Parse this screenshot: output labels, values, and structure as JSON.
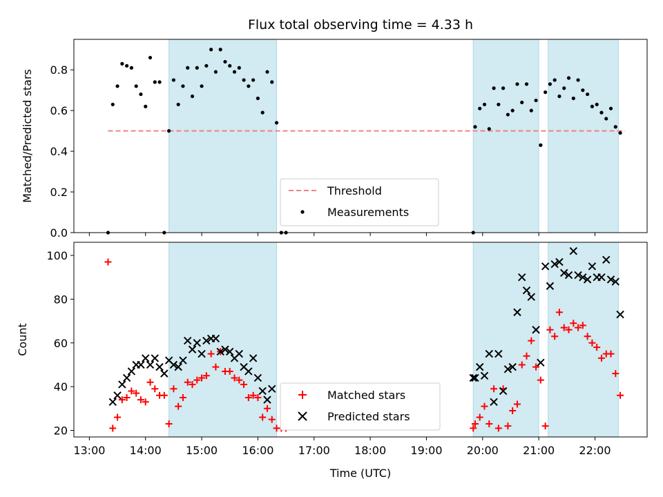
{
  "chart_data": {
    "title": "Flux total observing time = 4.33 h",
    "xlabel": "Time (UTC)",
    "x_ticks": [
      "13:00",
      "14:00",
      "15:00",
      "16:00",
      "17:00",
      "18:00",
      "19:00",
      "20:00",
      "21:00",
      "22:00"
    ],
    "shaded_intervals": [
      [
        "14:25",
        "16:20"
      ],
      [
        "19:50",
        "21:00"
      ],
      [
        "21:10",
        "22:25"
      ]
    ],
    "panels": [
      {
        "type": "scatter",
        "ylabel": "Matched/Predicted stars",
        "ylim": [
          0,
          0.95
        ],
        "y_ticks": [
          "0.0",
          "0.2",
          "0.4",
          "0.6",
          "0.8"
        ],
        "threshold": {
          "name": "Threshold",
          "value": 0.5,
          "x_range": [
            "13:20",
            "22:32"
          ],
          "color": "#f08080"
        },
        "series": [
          {
            "name": "Measurements",
            "color": "#000000",
            "points": [
              [
                "13:20",
                0.0
              ],
              [
                "13:25",
                0.63
              ],
              [
                "13:30",
                0.72
              ],
              [
                "13:35",
                0.83
              ],
              [
                "13:40",
                0.82
              ],
              [
                "13:45",
                0.81
              ],
              [
                "13:50",
                0.72
              ],
              [
                "13:55",
                0.68
              ],
              [
                "14:00",
                0.62
              ],
              [
                "14:05",
                0.86
              ],
              [
                "14:10",
                0.74
              ],
              [
                "14:15",
                0.74
              ],
              [
                "14:20",
                0.0
              ],
              [
                "14:25",
                0.5
              ],
              [
                "14:30",
                0.75
              ],
              [
                "14:35",
                0.63
              ],
              [
                "14:40",
                0.72
              ],
              [
                "14:45",
                0.81
              ],
              [
                "14:50",
                0.67
              ],
              [
                "14:55",
                0.81
              ],
              [
                "15:00",
                0.72
              ],
              [
                "15:05",
                0.82
              ],
              [
                "15:10",
                0.9
              ],
              [
                "15:15",
                0.79
              ],
              [
                "15:20",
                0.9
              ],
              [
                "15:25",
                0.84
              ],
              [
                "15:30",
                0.82
              ],
              [
                "15:35",
                0.79
              ],
              [
                "15:40",
                0.81
              ],
              [
                "15:45",
                0.75
              ],
              [
                "15:50",
                0.72
              ],
              [
                "15:55",
                0.75
              ],
              [
                "16:00",
                0.66
              ],
              [
                "16:05",
                0.59
              ],
              [
                "16:10",
                0.79
              ],
              [
                "16:15",
                0.74
              ],
              [
                "16:20",
                0.54
              ],
              [
                "16:25",
                0.0
              ],
              [
                "16:30",
                0.0
              ],
              [
                "19:50",
                0.0
              ],
              [
                "19:52",
                0.52
              ],
              [
                "19:57",
                0.61
              ],
              [
                "20:02",
                0.63
              ],
              [
                "20:07",
                0.51
              ],
              [
                "20:12",
                0.71
              ],
              [
                "20:17",
                0.63
              ],
              [
                "20:22",
                0.71
              ],
              [
                "20:27",
                0.58
              ],
              [
                "20:32",
                0.6
              ],
              [
                "20:37",
                0.73
              ],
              [
                "20:42",
                0.64
              ],
              [
                "20:47",
                0.73
              ],
              [
                "20:52",
                0.6
              ],
              [
                "20:57",
                0.65
              ],
              [
                "21:02",
                0.43
              ],
              [
                "21:07",
                0.69
              ],
              [
                "21:12",
                0.73
              ],
              [
                "21:17",
                0.75
              ],
              [
                "21:22",
                0.67
              ],
              [
                "21:27",
                0.71
              ],
              [
                "21:32",
                0.76
              ],
              [
                "21:37",
                0.66
              ],
              [
                "21:42",
                0.75
              ],
              [
                "21:47",
                0.7
              ],
              [
                "21:52",
                0.68
              ],
              [
                "21:57",
                0.62
              ],
              [
                "22:02",
                0.63
              ],
              [
                "22:07",
                0.59
              ],
              [
                "22:12",
                0.56
              ],
              [
                "22:17",
                0.61
              ],
              [
                "22:22",
                0.52
              ],
              [
                "22:27",
                0.49
              ]
            ]
          }
        ],
        "legend": {
          "position": "lower center",
          "entries": [
            "Threshold",
            "Measurements"
          ]
        }
      },
      {
        "type": "scatter",
        "ylabel": "Count",
        "ylim": [
          17,
          106
        ],
        "y_ticks": [
          "20",
          "40",
          "60",
          "80",
          "100"
        ],
        "series": [
          {
            "name": "Matched stars",
            "marker": "plus",
            "color": "#ff0000",
            "points": [
              [
                "13:20",
                97
              ],
              [
                "13:25",
                21
              ],
              [
                "13:30",
                26
              ],
              [
                "13:35",
                34
              ],
              [
                "13:40",
                35
              ],
              [
                "13:45",
                38
              ],
              [
                "13:50",
                37
              ],
              [
                "13:55",
                34
              ],
              [
                "14:00",
                33
              ],
              [
                "14:05",
                42
              ],
              [
                "14:10",
                39
              ],
              [
                "14:15",
                36
              ],
              [
                "14:20",
                36
              ],
              [
                "14:25",
                23
              ],
              [
                "14:30",
                39
              ],
              [
                "14:35",
                31
              ],
              [
                "14:40",
                35
              ],
              [
                "14:45",
                42
              ],
              [
                "14:50",
                41
              ],
              [
                "14:55",
                43
              ],
              [
                "15:00",
                44
              ],
              [
                "15:05",
                45
              ],
              [
                "15:10",
                55
              ],
              [
                "15:15",
                49
              ],
              [
                "15:20",
                56
              ],
              [
                "15:25",
                47
              ],
              [
                "15:30",
                47
              ],
              [
                "15:35",
                44
              ],
              [
                "15:40",
                43
              ],
              [
                "15:45",
                41
              ],
              [
                "15:50",
                35
              ],
              [
                "15:55",
                36
              ],
              [
                "16:00",
                35
              ],
              [
                "16:05",
                26
              ],
              [
                "16:10",
                30
              ],
              [
                "16:15",
                25
              ],
              [
                "16:20",
                21
              ],
              [
                "16:25",
                21
              ],
              [
                "16:30",
                21
              ],
              [
                "19:50",
                21
              ],
              [
                "19:52",
                23
              ],
              [
                "19:57",
                26
              ],
              [
                "20:02",
                31
              ],
              [
                "20:07",
                23
              ],
              [
                "20:12",
                39
              ],
              [
                "20:17",
                21
              ],
              [
                "20:22",
                39
              ],
              [
                "20:27",
                22
              ],
              [
                "20:32",
                29
              ],
              [
                "20:37",
                32
              ],
              [
                "20:42",
                50
              ],
              [
                "20:47",
                54
              ],
              [
                "20:52",
                61
              ],
              [
                "20:57",
                49
              ],
              [
                "21:02",
                43
              ],
              [
                "21:07",
                22
              ],
              [
                "21:12",
                66
              ],
              [
                "21:17",
                63
              ],
              [
                "21:22",
                74
              ],
              [
                "21:27",
                67
              ],
              [
                "21:32",
                66
              ],
              [
                "21:37",
                69
              ],
              [
                "21:42",
                67
              ],
              [
                "21:47",
                68
              ],
              [
                "21:52",
                63
              ],
              [
                "21:57",
                60
              ],
              [
                "22:02",
                58
              ],
              [
                "22:07",
                53
              ],
              [
                "22:12",
                55
              ],
              [
                "22:17",
                55
              ],
              [
                "22:22",
                46
              ],
              [
                "22:27",
                36
              ]
            ]
          },
          {
            "name": "Predicted stars",
            "marker": "x",
            "color": "#000000",
            "points": [
              [
                "13:25",
                33
              ],
              [
                "13:30",
                36
              ],
              [
                "13:35",
                41
              ],
              [
                "13:40",
                44
              ],
              [
                "13:45",
                47
              ],
              [
                "13:50",
                50
              ],
              [
                "13:55",
                50
              ],
              [
                "14:00",
                53
              ],
              [
                "14:05",
                50
              ],
              [
                "14:10",
                53
              ],
              [
                "14:15",
                49
              ],
              [
                "14:20",
                46
              ],
              [
                "14:25",
                52
              ],
              [
                "14:30",
                50
              ],
              [
                "14:35",
                49
              ],
              [
                "14:40",
                52
              ],
              [
                "14:45",
                61
              ],
              [
                "14:50",
                57
              ],
              [
                "14:55",
                60
              ],
              [
                "15:00",
                55
              ],
              [
                "15:05",
                61
              ],
              [
                "15:10",
                62
              ],
              [
                "15:15",
                62
              ],
              [
                "15:20",
                56
              ],
              [
                "15:25",
                57
              ],
              [
                "15:30",
                56
              ],
              [
                "15:35",
                53
              ],
              [
                "15:40",
                55
              ],
              [
                "15:45",
                49
              ],
              [
                "15:50",
                47
              ],
              [
                "15:55",
                53
              ],
              [
                "16:00",
                44
              ],
              [
                "16:05",
                38
              ],
              [
                "16:10",
                34
              ],
              [
                "16:15",
                39
              ],
              [
                "19:50",
                44
              ],
              [
                "19:52",
                44
              ],
              [
                "19:57",
                49
              ],
              [
                "20:02",
                45
              ],
              [
                "20:07",
                55
              ],
              [
                "20:12",
                33
              ],
              [
                "20:17",
                55
              ],
              [
                "20:22",
                38
              ],
              [
                "20:27",
                48
              ],
              [
                "20:32",
                49
              ],
              [
                "20:37",
                74
              ],
              [
                "20:42",
                90
              ],
              [
                "20:47",
                84
              ],
              [
                "20:52",
                81
              ],
              [
                "20:57",
                66
              ],
              [
                "21:02",
                51
              ],
              [
                "21:07",
                95
              ],
              [
                "21:12",
                86
              ],
              [
                "21:17",
                96
              ],
              [
                "21:22",
                97
              ],
              [
                "21:27",
                92
              ],
              [
                "21:32",
                91
              ],
              [
                "21:37",
                102
              ],
              [
                "21:42",
                91
              ],
              [
                "21:47",
                90
              ],
              [
                "21:52",
                89
              ],
              [
                "21:57",
                95
              ],
              [
                "22:02",
                90
              ],
              [
                "22:07",
                90
              ],
              [
                "22:12",
                98
              ],
              [
                "22:17",
                89
              ],
              [
                "22:22",
                88
              ],
              [
                "22:27",
                73
              ]
            ]
          }
        ],
        "legend": {
          "position": "lower center",
          "entries": [
            "Matched stars",
            "Predicted stars"
          ]
        }
      }
    ],
    "shade_color": "#add8e6",
    "grid": false
  }
}
